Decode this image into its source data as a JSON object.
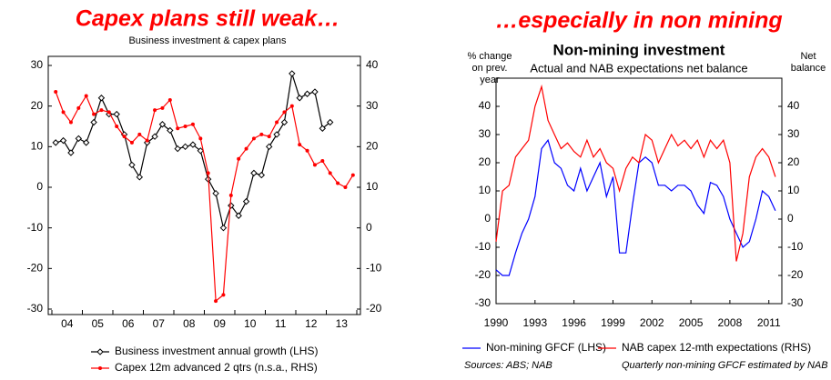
{
  "chart_data": [
    {
      "type": "line",
      "title": "Capex plans still weak…",
      "subtitle": "Business investment & capex plans",
      "categories": [
        null,
        "04",
        null,
        null,
        null,
        "05",
        null,
        null,
        null,
        "06",
        null,
        null,
        null,
        "07",
        null,
        null,
        null,
        "08",
        null,
        null,
        null,
        "09",
        null,
        null,
        null,
        "10",
        null,
        null,
        null,
        "11",
        null,
        null,
        null,
        "12",
        null,
        null,
        null,
        "13",
        null,
        null
      ],
      "series": [
        {
          "name": "Business investment annual growth (LHS)",
          "color": "#000000",
          "marker": "diamond",
          "values": [
            11,
            11.5,
            8.5,
            12,
            11,
            16,
            22,
            18,
            18,
            13,
            5.5,
            2.5,
            11,
            12.5,
            15.5,
            14,
            9.5,
            10,
            10.5,
            9,
            2,
            -1.5,
            -10,
            -4.5,
            -7,
            -3.5,
            3.5,
            3,
            10,
            13,
            16,
            28,
            22,
            23,
            23.5,
            14.5,
            16,
            null,
            null,
            null
          ]
        },
        {
          "name": "Capex 12m advanced 2 qtrs  (n.s.a., RHS)",
          "color": "#ff0000",
          "marker": "circle",
          "axis": "y2",
          "values": [
            33.5,
            28.5,
            26,
            29.5,
            32.5,
            28,
            29,
            28.5,
            25,
            22.5,
            21,
            23,
            21.5,
            29,
            29.5,
            31.5,
            24.5,
            25,
            25.5,
            22,
            13.5,
            -18,
            -16.5,
            8,
            17,
            19.5,
            22,
            23,
            22.5,
            26,
            28.5,
            30,
            20.5,
            19,
            15.5,
            16.5,
            13.5,
            11,
            10,
            13
          ]
        }
      ],
      "ylim": [
        -30,
        30
      ],
      "yticks": [
        -30,
        -20,
        -10,
        0,
        10,
        20,
        30
      ],
      "y2lim": [
        -20,
        40
      ],
      "y2ticks": [
        -20,
        -10,
        0,
        10,
        20,
        30,
        40
      ],
      "legend": "bottom"
    },
    {
      "type": "line",
      "title": "…especially in non mining",
      "heading": "Non-mining investment",
      "subtitle": "Actual and NAB expectations net balance",
      "y_label": "% change on prev. year",
      "y2_label": "Net balance",
      "x": [
        1990,
        1990.5,
        1991,
        1991.5,
        1992,
        1992.5,
        1993,
        1993.5,
        1994,
        1994.5,
        1995,
        1995.5,
        1996,
        1996.5,
        1997,
        1997.5,
        1998,
        1998.5,
        1999,
        1999.5,
        2000,
        2000.5,
        2001,
        2001.5,
        2002,
        2002.5,
        2003,
        2003.5,
        2004,
        2004.5,
        2005,
        2005.5,
        2006,
        2006.5,
        2007,
        2007.5,
        2008,
        2008.5,
        2009,
        2009.5,
        2010,
        2010.5,
        2011,
        2011.5
      ],
      "xlim": [
        1990,
        2012
      ],
      "xticks": [
        1990,
        1993,
        1996,
        1999,
        2002,
        2005,
        2008,
        2011
      ],
      "series": [
        {
          "name": "Non-mining GFCF (LHS)",
          "color": "#0000ff",
          "values": [
            -18,
            -20,
            -20,
            -12,
            -5,
            0,
            8,
            25,
            28,
            20,
            18,
            12,
            10,
            18,
            10,
            15,
            20,
            8,
            15,
            -12,
            -12,
            5,
            20,
            22,
            20,
            12,
            12,
            10,
            12,
            12,
            10,
            5,
            2,
            13,
            12,
            8,
            0,
            -5,
            -10,
            -8,
            0,
            10,
            8,
            3
          ]
        },
        {
          "name": "NAB capex 12-mth expectations (RHS)",
          "color": "#ff0000",
          "axis": "y2",
          "values": [
            -8,
            10,
            12,
            22,
            25,
            28,
            40,
            47,
            35,
            30,
            25,
            27,
            24,
            22,
            28,
            22,
            25,
            20,
            18,
            10,
            18,
            22,
            20,
            30,
            28,
            20,
            25,
            30,
            26,
            28,
            25,
            28,
            22,
            28,
            25,
            28,
            20,
            -15,
            -5,
            15,
            22,
            25,
            22,
            15
          ]
        }
      ],
      "ylim": [
        -30,
        50
      ],
      "yticks": [
        -30,
        -20,
        -10,
        0,
        10,
        20,
        30,
        40
      ],
      "y2lim": [
        -30,
        50
      ],
      "y2ticks": [
        -30,
        -20,
        -10,
        0,
        10,
        20,
        30,
        40
      ],
      "legend": "bottom",
      "source": "Sources: ABS; NAB",
      "note": "Quarterly non-mining GFCF estimated by NAB"
    }
  ]
}
